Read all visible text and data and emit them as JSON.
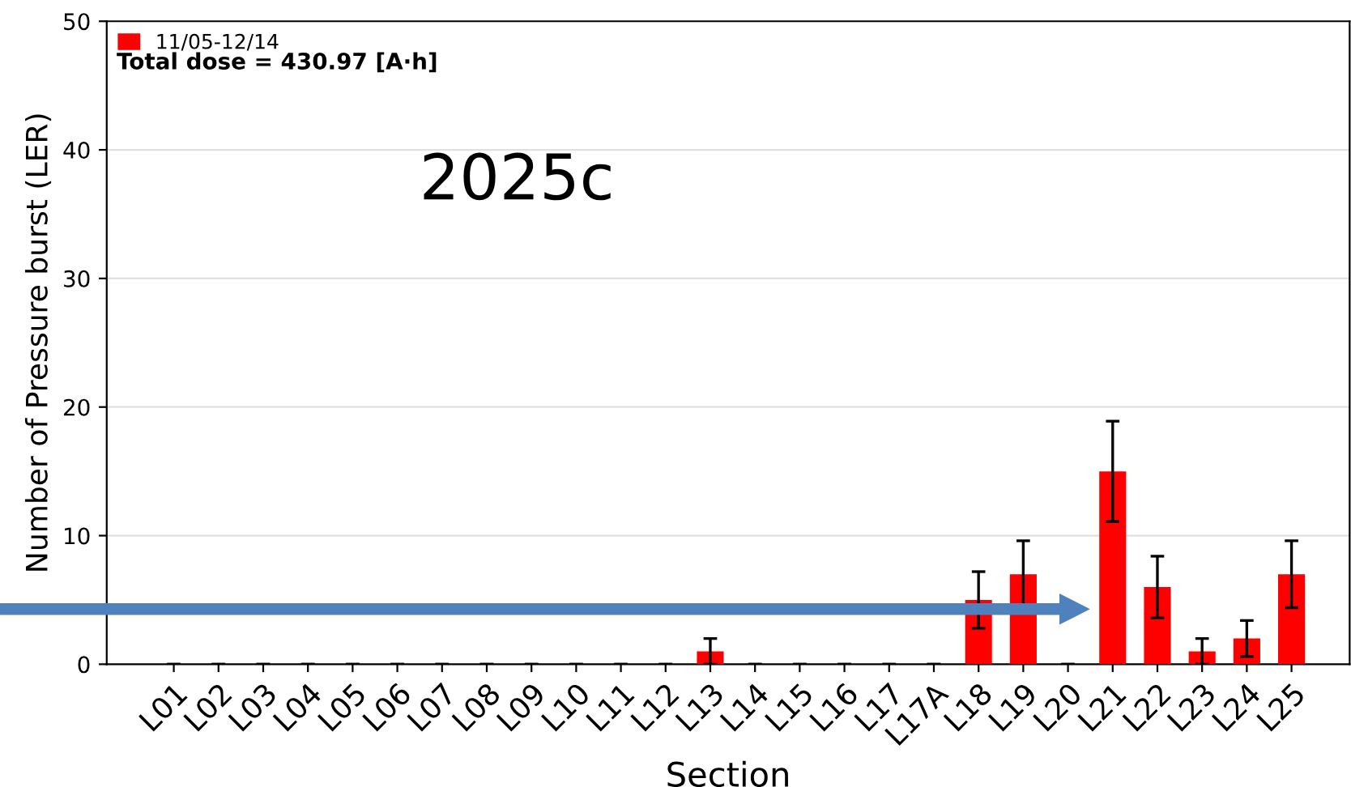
{
  "chart_data": {
    "type": "bar",
    "xlabel": "Section",
    "ylabel": "Number of Pressure burst (LER)",
    "categories": [
      "L01",
      "L02",
      "L03",
      "L04",
      "L05",
      "L06",
      "L07",
      "L08",
      "L09",
      "L10",
      "L11",
      "L12",
      "L13",
      "L14",
      "L15",
      "L16",
      "L17",
      "L17A",
      "L18",
      "L19",
      "L20",
      "L21",
      "L22",
      "L23",
      "L24",
      "L25"
    ],
    "series": [
      {
        "name": "11/05-12/14",
        "color": "#ff0000",
        "values": [
          0,
          0,
          0,
          0,
          0,
          0,
          0,
          0,
          0,
          0,
          0,
          0,
          1,
          0,
          0,
          0,
          0,
          0,
          5,
          7,
          0,
          15,
          6,
          1,
          2,
          7
        ],
        "errors": [
          0,
          0,
          0,
          0,
          0,
          0,
          0,
          0,
          0,
          0,
          0,
          0,
          1,
          0,
          0,
          0,
          0,
          0,
          2.2,
          2.6,
          0,
          3.9,
          2.4,
          1,
          1.4,
          2.6
        ]
      }
    ],
    "ylim": [
      0,
      50
    ],
    "yticks": [
      0,
      10,
      20,
      30,
      40,
      50
    ],
    "grid": "y",
    "legend": "top left",
    "annotations": [
      "Total dose = 430.97 [A·h]",
      "2025c"
    ]
  }
}
